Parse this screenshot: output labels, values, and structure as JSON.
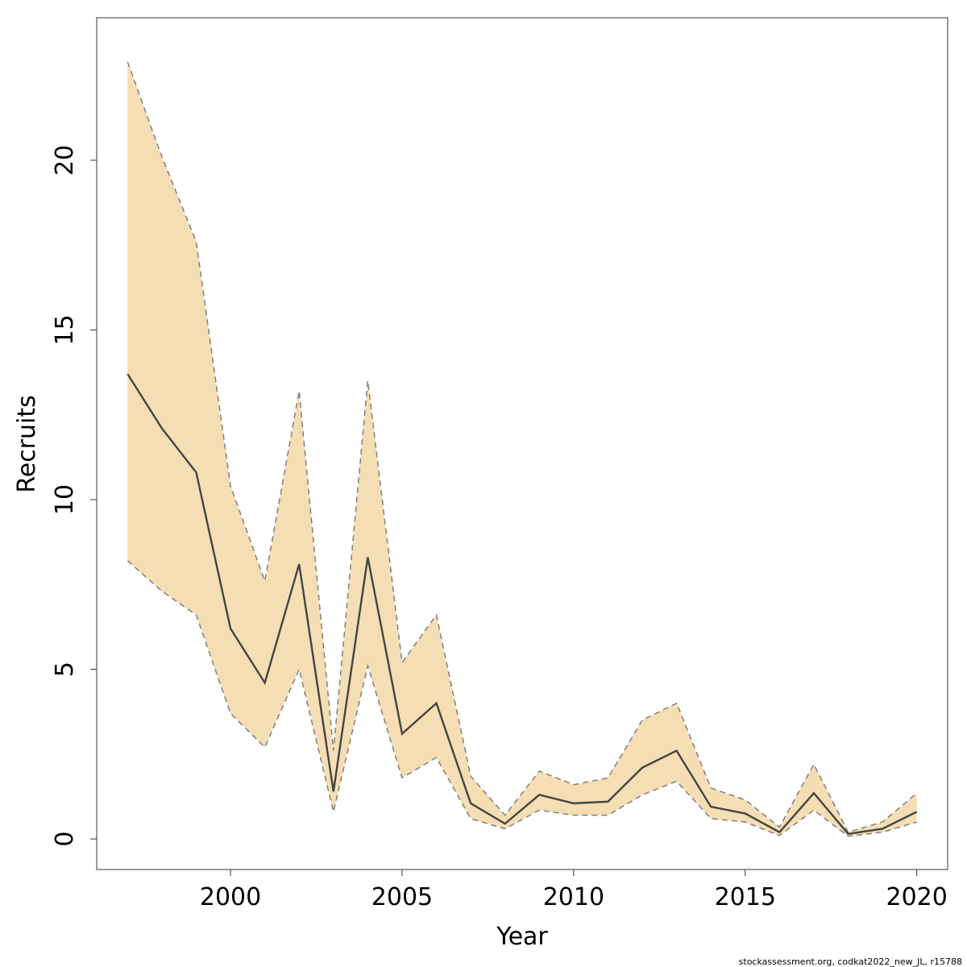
{
  "chart_data": {
    "type": "area",
    "xlabel": "Year",
    "ylabel": "Recruits",
    "xlim": [
      1996.1,
      2020.9
    ],
    "ylim": [
      -0.9,
      24.2
    ],
    "xticks": [
      2000,
      2005,
      2010,
      2015,
      2020
    ],
    "yticks": [
      0,
      5,
      10,
      15,
      20
    ],
    "grid": false,
    "band_color": "#f5deb3",
    "line_color": "#444444",
    "bound_color": "#7f7f7f",
    "x": [
      1997,
      1998,
      1999,
      2000,
      2001,
      2002,
      2003,
      2004,
      2005,
      2006,
      2007,
      2008,
      2009,
      2010,
      2011,
      2012,
      2013,
      2014,
      2015,
      2016,
      2017,
      2018,
      2019,
      2020
    ],
    "series": [
      {
        "values": [
          13.7,
          12.1,
          10.8,
          6.2,
          4.6,
          8.1,
          1.4,
          8.3,
          3.1,
          4.0,
          1.05,
          0.45,
          1.3,
          1.05,
          1.1,
          2.1,
          2.6,
          0.95,
          0.75,
          0.2,
          1.35,
          0.15,
          0.3,
          0.8
        ]
      }
    ],
    "upper": [
      22.9,
      20.1,
      17.6,
      10.4,
      7.6,
      13.2,
      2.6,
      13.5,
      5.2,
      6.6,
      1.85,
      0.7,
      2.0,
      1.6,
      1.8,
      3.5,
      4.0,
      1.5,
      1.15,
      0.35,
      2.2,
      0.2,
      0.5,
      1.35
    ],
    "lower": [
      8.2,
      7.3,
      6.6,
      3.7,
      2.7,
      5.0,
      0.8,
      5.1,
      1.8,
      2.4,
      0.6,
      0.3,
      0.85,
      0.7,
      0.7,
      1.3,
      1.7,
      0.6,
      0.5,
      0.1,
      0.85,
      0.08,
      0.2,
      0.5
    ]
  },
  "footer": "stockassessment.org, codkat2022_new_JL, r15788"
}
